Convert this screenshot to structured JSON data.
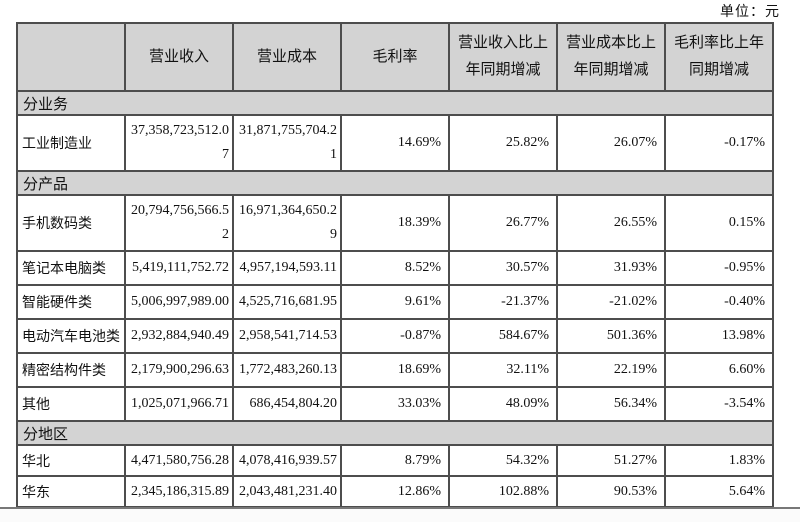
{
  "meta": {
    "unit_label": "单位：元",
    "colors": {
      "header_bg": "#d3d3d3",
      "border": "#4d4d4d",
      "page_bg": "#ffffff"
    }
  },
  "table": {
    "columns": [
      "",
      "营业收入",
      "营业成本",
      "毛利率",
      "营业收入比上年同期增减",
      "营业成本比上年同期增减",
      "毛利率比上年同期增减"
    ],
    "sections": [
      {
        "header": "分业务",
        "rows": [
          {
            "label": "工业制造业",
            "revenue": "37,358,723,512.07",
            "cost": "31,871,755,704.21",
            "margin": "14.69%",
            "revenue_yoy": "25.82%",
            "cost_yoy": "26.07%",
            "margin_yoy": "-0.17%"
          }
        ]
      },
      {
        "header": "分产品",
        "rows": [
          {
            "label": "手机数码类",
            "revenue": "20,794,756,566.52",
            "cost": "16,971,364,650.29",
            "margin": "18.39%",
            "revenue_yoy": "26.77%",
            "cost_yoy": "26.55%",
            "margin_yoy": "0.15%"
          },
          {
            "label": "笔记本电脑类",
            "revenue": "5,419,111,752.72",
            "cost": "4,957,194,593.11",
            "margin": "8.52%",
            "revenue_yoy": "30.57%",
            "cost_yoy": "31.93%",
            "margin_yoy": "-0.95%"
          },
          {
            "label": "智能硬件类",
            "revenue": "5,006,997,989.00",
            "cost": "4,525,716,681.95",
            "margin": "9.61%",
            "revenue_yoy": "-21.37%",
            "cost_yoy": "-21.02%",
            "margin_yoy": "-0.40%"
          },
          {
            "label": "电动汽车电池类",
            "revenue": "2,932,884,940.49",
            "cost": "2,958,541,714.53",
            "margin": "-0.87%",
            "revenue_yoy": "584.67%",
            "cost_yoy": "501.36%",
            "margin_yoy": "13.98%"
          },
          {
            "label": "精密结构件类",
            "revenue": "2,179,900,296.63",
            "cost": "1,772,483,260.13",
            "margin": "18.69%",
            "revenue_yoy": "32.11%",
            "cost_yoy": "22.19%",
            "margin_yoy": "6.60%"
          },
          {
            "label": "其他",
            "revenue": "1,025,071,966.71",
            "cost": "686,454,804.20",
            "margin": "33.03%",
            "revenue_yoy": "48.09%",
            "cost_yoy": "56.34%",
            "margin_yoy": "-3.54%"
          }
        ]
      },
      {
        "header": "分地区",
        "rows": [
          {
            "label": "华北",
            "revenue": "4,471,580,756.28",
            "cost": "4,078,416,939.57",
            "margin": "8.79%",
            "revenue_yoy": "54.32%",
            "cost_yoy": "51.27%",
            "margin_yoy": "1.83%"
          },
          {
            "label": "华东",
            "revenue": "2,345,186,315.89",
            "cost": "2,043,481,231.40",
            "margin": "12.86%",
            "revenue_yoy": "102.88%",
            "cost_yoy": "90.53%",
            "margin_yoy": "5.64%"
          }
        ]
      }
    ]
  }
}
